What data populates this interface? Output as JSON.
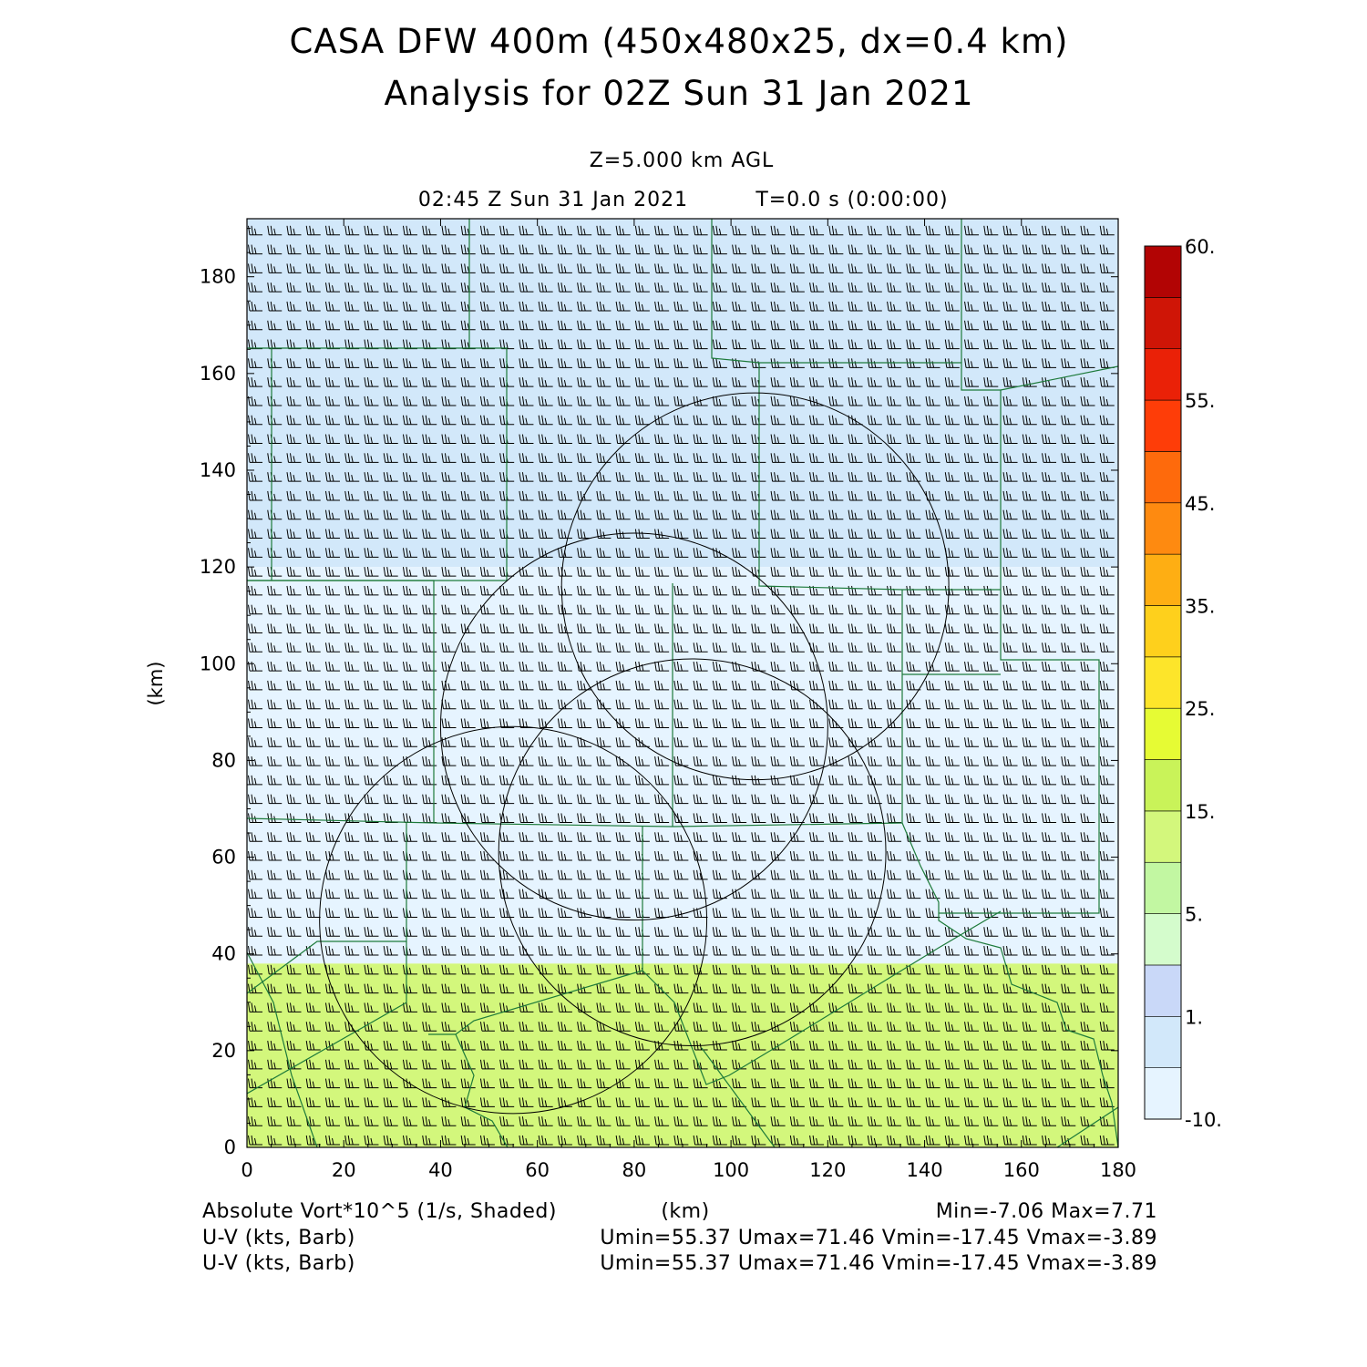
{
  "header": {
    "title_line1": "CASA DFW 400m (450x480x25, dx=0.4 km)",
    "title_line2": "Analysis for 02Z Sun 31 Jan 2021",
    "level": "Z=5.000 km AGL",
    "valid_time": "02:45 Z Sun 31 Jan 2021",
    "forecast_time": "T=0.0 s (0:00:00)"
  },
  "footer": {
    "field_label": "Absolute Vort*10^5 (1/s, Shaded)",
    "x_unit": "(km)",
    "minmax": "Min=-7.06 Max=7.71",
    "barb_label_1": "U-V (kts, Barb)",
    "barb_stats_1": "Umin=55.37 Umax=71.46 Vmin=-17.45 Vmax=-3.89",
    "barb_label_2": "U-V (kts, Barb)",
    "barb_stats_2": "Umin=55.37 Umax=71.46 Vmin=-17.45 Vmax=-3.89"
  },
  "chart_data": {
    "type": "heatmap",
    "field": "Absolute Vort*10^5 (1/s)",
    "xlabel": "",
    "ylabel": "(km)",
    "xlim": [
      0,
      180
    ],
    "ylim": [
      0,
      192
    ],
    "x_ticks": [
      0,
      20,
      40,
      60,
      80,
      100,
      120,
      140,
      160,
      180
    ],
    "y_ticks": [
      0,
      20,
      40,
      60,
      80,
      100,
      120,
      140,
      160,
      180
    ],
    "colorbar": {
      "labels": [
        "-10.",
        "1.",
        "5.",
        "15.",
        "25.",
        "35.",
        "45.",
        "55.",
        "60."
      ],
      "colors": [
        "#e6f4ff",
        "#d2e8fa",
        "#c9d8f8",
        "#d4fccc",
        "#c2f7a2",
        "#d3f77c",
        "#c9f359",
        "#e6fb34",
        "#fde52a",
        "#fed01c",
        "#feae13",
        "#fe8a10",
        "#fe6a0c",
        "#fe3d08",
        "#ea2107",
        "#cf1506",
        "#b20404"
      ]
    },
    "shading_regions": [
      {
        "description": "northern band",
        "y_range": [
          120,
          192
        ],
        "level_color": "#d2e8fa"
      },
      {
        "description": "central band",
        "y_range": [
          38,
          120
        ],
        "level_color": "#e6f4ff"
      },
      {
        "description": "southern band",
        "y_range": [
          0,
          38
        ],
        "level_color": "#d3f77c"
      }
    ],
    "range_rings": [
      {
        "center": [
          55,
          47
        ],
        "radius": 40
      },
      {
        "center": [
          80,
          87
        ],
        "radius": 40
      },
      {
        "center": [
          92,
          61
        ],
        "radius": 40
      },
      {
        "center": [
          105,
          116
        ],
        "radius": 40
      }
    ],
    "min": -7.06,
    "max": 7.71,
    "wind": {
      "umin": 55.37,
      "umax": 71.46,
      "vmin": -17.45,
      "vmax": -3.89
    }
  }
}
